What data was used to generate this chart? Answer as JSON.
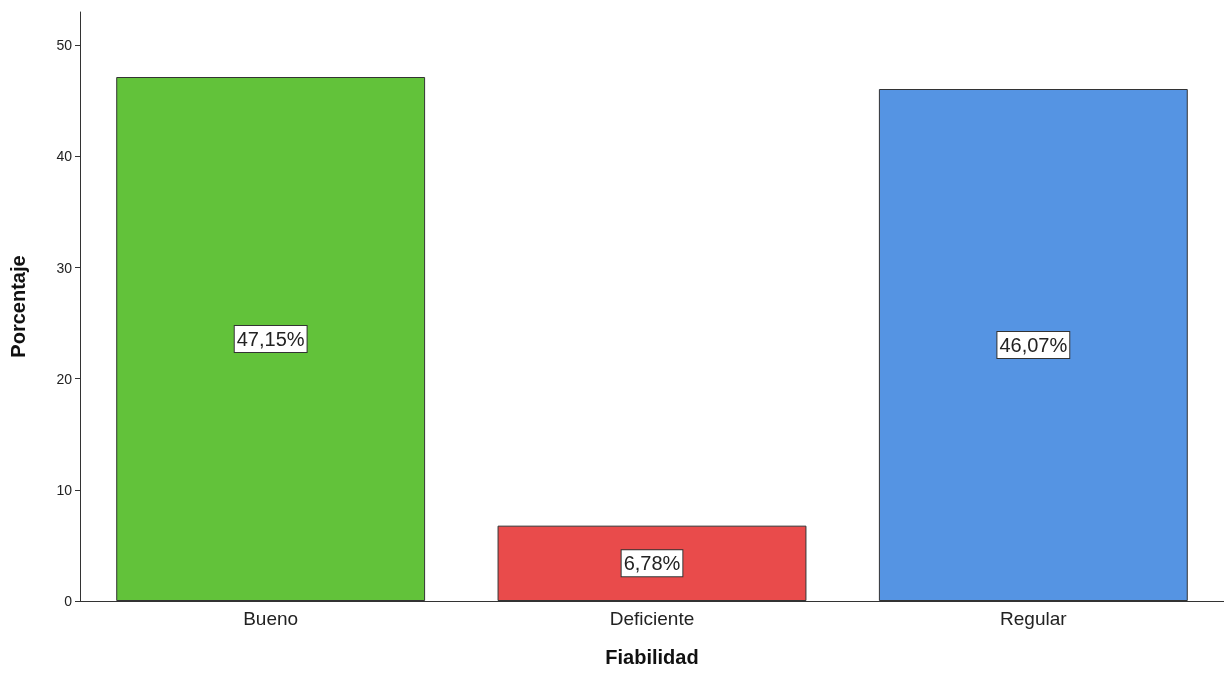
{
  "chart_data": {
    "type": "bar",
    "xlabel": "Fiabilidad",
    "ylabel": "Porcentaje",
    "categories": [
      "Bueno",
      "Deficiente",
      "Regular"
    ],
    "values": [
      47.15,
      6.78,
      46.07
    ],
    "colors": [
      "#62c23a",
      "#e94b4b",
      "#5594e3"
    ],
    "value_labels": [
      "47,15%",
      "6,78%",
      "46,07%"
    ],
    "ylim": [
      0,
      53
    ],
    "yticks": [
      0,
      10,
      20,
      30,
      40,
      50
    ],
    "grid": false
  }
}
